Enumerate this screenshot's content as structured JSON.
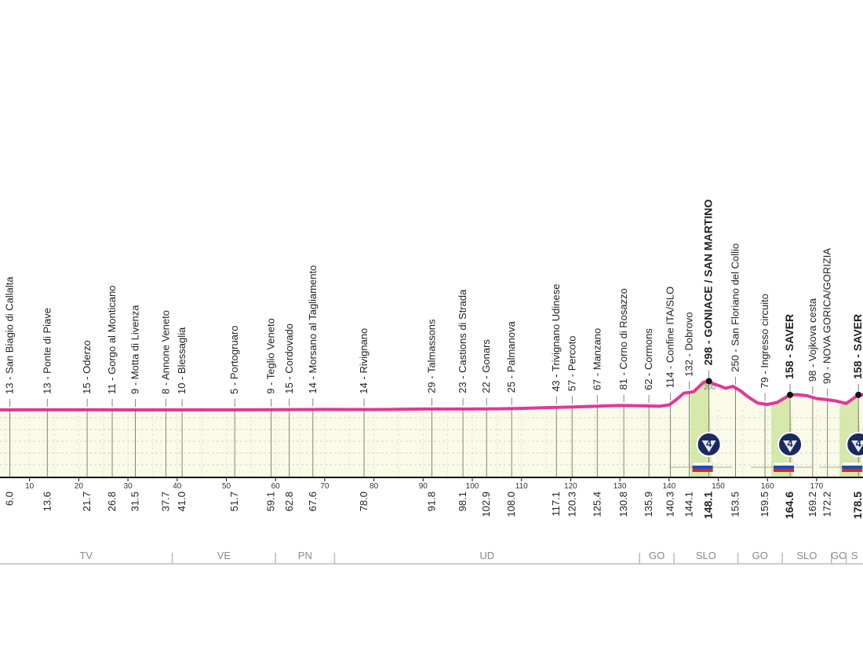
{
  "profile": {
    "distance_points": [
      0,
      5,
      10,
      20,
      30,
      40,
      50,
      60,
      70,
      80,
      90,
      100,
      105,
      110,
      115,
      120,
      125,
      130,
      135,
      138,
      140,
      141.5,
      143,
      145,
      147,
      148.1,
      149,
      150,
      151.5,
      153,
      154.5,
      156,
      158,
      160,
      162,
      164.6,
      166,
      168,
      170,
      172,
      174,
      176,
      178.5,
      180
    ],
    "altitude_points": [
      5,
      5,
      6,
      6,
      5,
      5,
      5,
      7,
      10,
      8,
      14,
      14,
      16,
      20,
      28,
      34,
      42,
      50,
      46,
      42,
      55,
      110,
      175,
      190,
      285,
      298,
      270,
      255,
      225,
      245,
      200,
      140,
      75,
      60,
      82,
      158,
      160,
      150,
      120,
      110,
      95,
      70,
      158,
      160
    ],
    "altitude_tick": "200"
  },
  "waypoints": [
    {
      "km": 6.0,
      "name": "13 - San Biagio di Callalta",
      "km_label": "6.0"
    },
    {
      "km": 13.6,
      "name": "13 - Ponte di Piave",
      "km_label": "13.6"
    },
    {
      "km": 21.7,
      "name": "15 - Oderzo",
      "km_label": "21.7"
    },
    {
      "km": 26.8,
      "name": "11 - Gorgo al Monticano",
      "km_label": "26.8"
    },
    {
      "km": 31.5,
      "name": "9 - Motta di Livenza",
      "km_label": "31.5"
    },
    {
      "km": 37.7,
      "name": "8 - Annone Veneto",
      "km_label": "37.7"
    },
    {
      "km": 41.0,
      "name": "10 - Blessaglia",
      "km_label": "41.0"
    },
    {
      "km": 51.7,
      "name": "5 - Portogruaro",
      "km_label": "51.7"
    },
    {
      "km": 59.1,
      "name": "9 - Teglio Veneto",
      "km_label": "59.1"
    },
    {
      "km": 62.8,
      "name": "15 - Cordovado",
      "km_label": "62.8"
    },
    {
      "km": 67.6,
      "name": "14 - Morsano al Tagliamento",
      "km_label": "67.6"
    },
    {
      "km": 78.0,
      "name": "14 - Rivignano",
      "km_label": "78.0"
    },
    {
      "km": 91.8,
      "name": "29 - Talmassons",
      "km_label": "91.8"
    },
    {
      "km": 98.1,
      "name": "23 - Castions di Strada",
      "km_label": "98.1"
    },
    {
      "km": 102.9,
      "name": "22 - Gonars",
      "km_label": "102.9"
    },
    {
      "km": 108.0,
      "name": "25 - Palmanova",
      "km_label": "108.0"
    },
    {
      "km": 117.1,
      "name": "43 - Trivignano Udinese",
      "km_label": "117.1"
    },
    {
      "km": 120.3,
      "name": "57 - Percoto",
      "km_label": "120.3"
    },
    {
      "km": 125.4,
      "name": "67 - Manzano",
      "km_label": "125.4"
    },
    {
      "km": 130.8,
      "name": "81 - Corno di Rosazzo",
      "km_label": "130.8"
    },
    {
      "km": 135.9,
      "name": "62 - Cormons",
      "km_label": "135.9"
    },
    {
      "km": 140.3,
      "name": "114 - Confine ITA/SLO",
      "km_label": "140.3"
    },
    {
      "km": 144.1,
      "name": "132 - Dobrovo",
      "km_label": "144.1"
    },
    {
      "km": 148.1,
      "name": "298 - GONIACE / SAN MARTINO",
      "km_label": "148.1",
      "bold": true,
      "climb": "4"
    },
    {
      "km": 153.5,
      "name": "250 - San Floriano del Collio",
      "km_label": "153.5"
    },
    {
      "km": 159.5,
      "name": "79 - Ingresso circuito",
      "km_label": "159.5"
    },
    {
      "km": 164.6,
      "name": "158 - SAVER",
      "km_label": "164.6",
      "bold": true,
      "climb": "4"
    },
    {
      "km": 169.2,
      "name": "98 - Vojkova cesta",
      "km_label": "169.2"
    },
    {
      "km": 172.2,
      "name": "90 - NOVA GORICA/GORIZIA",
      "km_label": "172.2"
    },
    {
      "km": 178.5,
      "name": "158 - SAVER",
      "km_label": "178.5",
      "bold": true,
      "climb": "4"
    }
  ],
  "axis_ticks": [
    "10",
    "20",
    "30",
    "40",
    "50",
    "60",
    "70",
    "80",
    "90",
    "100",
    "110",
    "120",
    "130",
    "140",
    "150",
    "160",
    "170"
  ],
  "regions": [
    {
      "label": "TV",
      "from": 0,
      "to": 39
    },
    {
      "label": "VE",
      "from": 39,
      "to": 60
    },
    {
      "label": "PN",
      "from": 60,
      "to": 72
    },
    {
      "label": "UD",
      "from": 72,
      "to": 134
    },
    {
      "label": "GO",
      "from": 134,
      "to": 141
    },
    {
      "label": "SLO",
      "from": 141,
      "to": 154
    },
    {
      "label": "GO",
      "from": 154,
      "to": 163
    },
    {
      "label": "SLO",
      "from": 163,
      "to": 173
    },
    {
      "label": "GO",
      "from": 173,
      "to": 176
    },
    {
      "label": "S",
      "from": 176,
      "to": 182
    }
  ],
  "colors": {
    "profile_line": "#e2379b",
    "profile_fill": "#fafae8",
    "climb_fill": "#cfe4a0",
    "climb_badge": "#1a2a5e",
    "axis": "#111111",
    "region_line": "#bbbbbb"
  },
  "icons": {
    "climb_badge": "kom-category-4-icon",
    "border_flag": "slovenia-flag-icon"
  }
}
